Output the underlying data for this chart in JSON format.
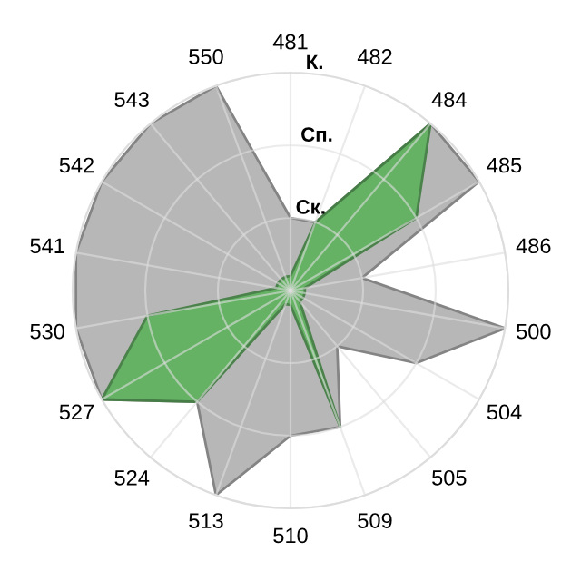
{
  "chart_data": {
    "type": "radar",
    "categories": [
      "481",
      "482",
      "484",
      "485",
      "486",
      "500",
      "504",
      "505",
      "509",
      "510",
      "513",
      "524",
      "527",
      "530",
      "541",
      "542",
      "543",
      "550"
    ],
    "ylim": [
      0,
      3
    ],
    "yticks": [
      {
        "value": 1,
        "label": "Ск."
      },
      {
        "value": 2,
        "label": "Сп."
      },
      {
        "value": 3,
        "label": "К."
      }
    ],
    "grid": true,
    "legend": false,
    "series": [
      {
        "color": "#b4b4b4",
        "values": [
          1,
          1,
          3,
          3,
          1,
          3,
          2,
          1,
          2,
          2,
          3,
          2,
          3,
          3,
          3,
          3,
          3,
          3
        ]
      },
      {
        "color": "#5cb25c",
        "values": [
          0.2,
          1,
          3,
          2,
          0.2,
          0.2,
          0.2,
          0.2,
          2,
          0.2,
          0.2,
          2,
          3,
          2,
          0.2,
          0.2,
          0.2,
          0.2
        ]
      }
    ]
  }
}
